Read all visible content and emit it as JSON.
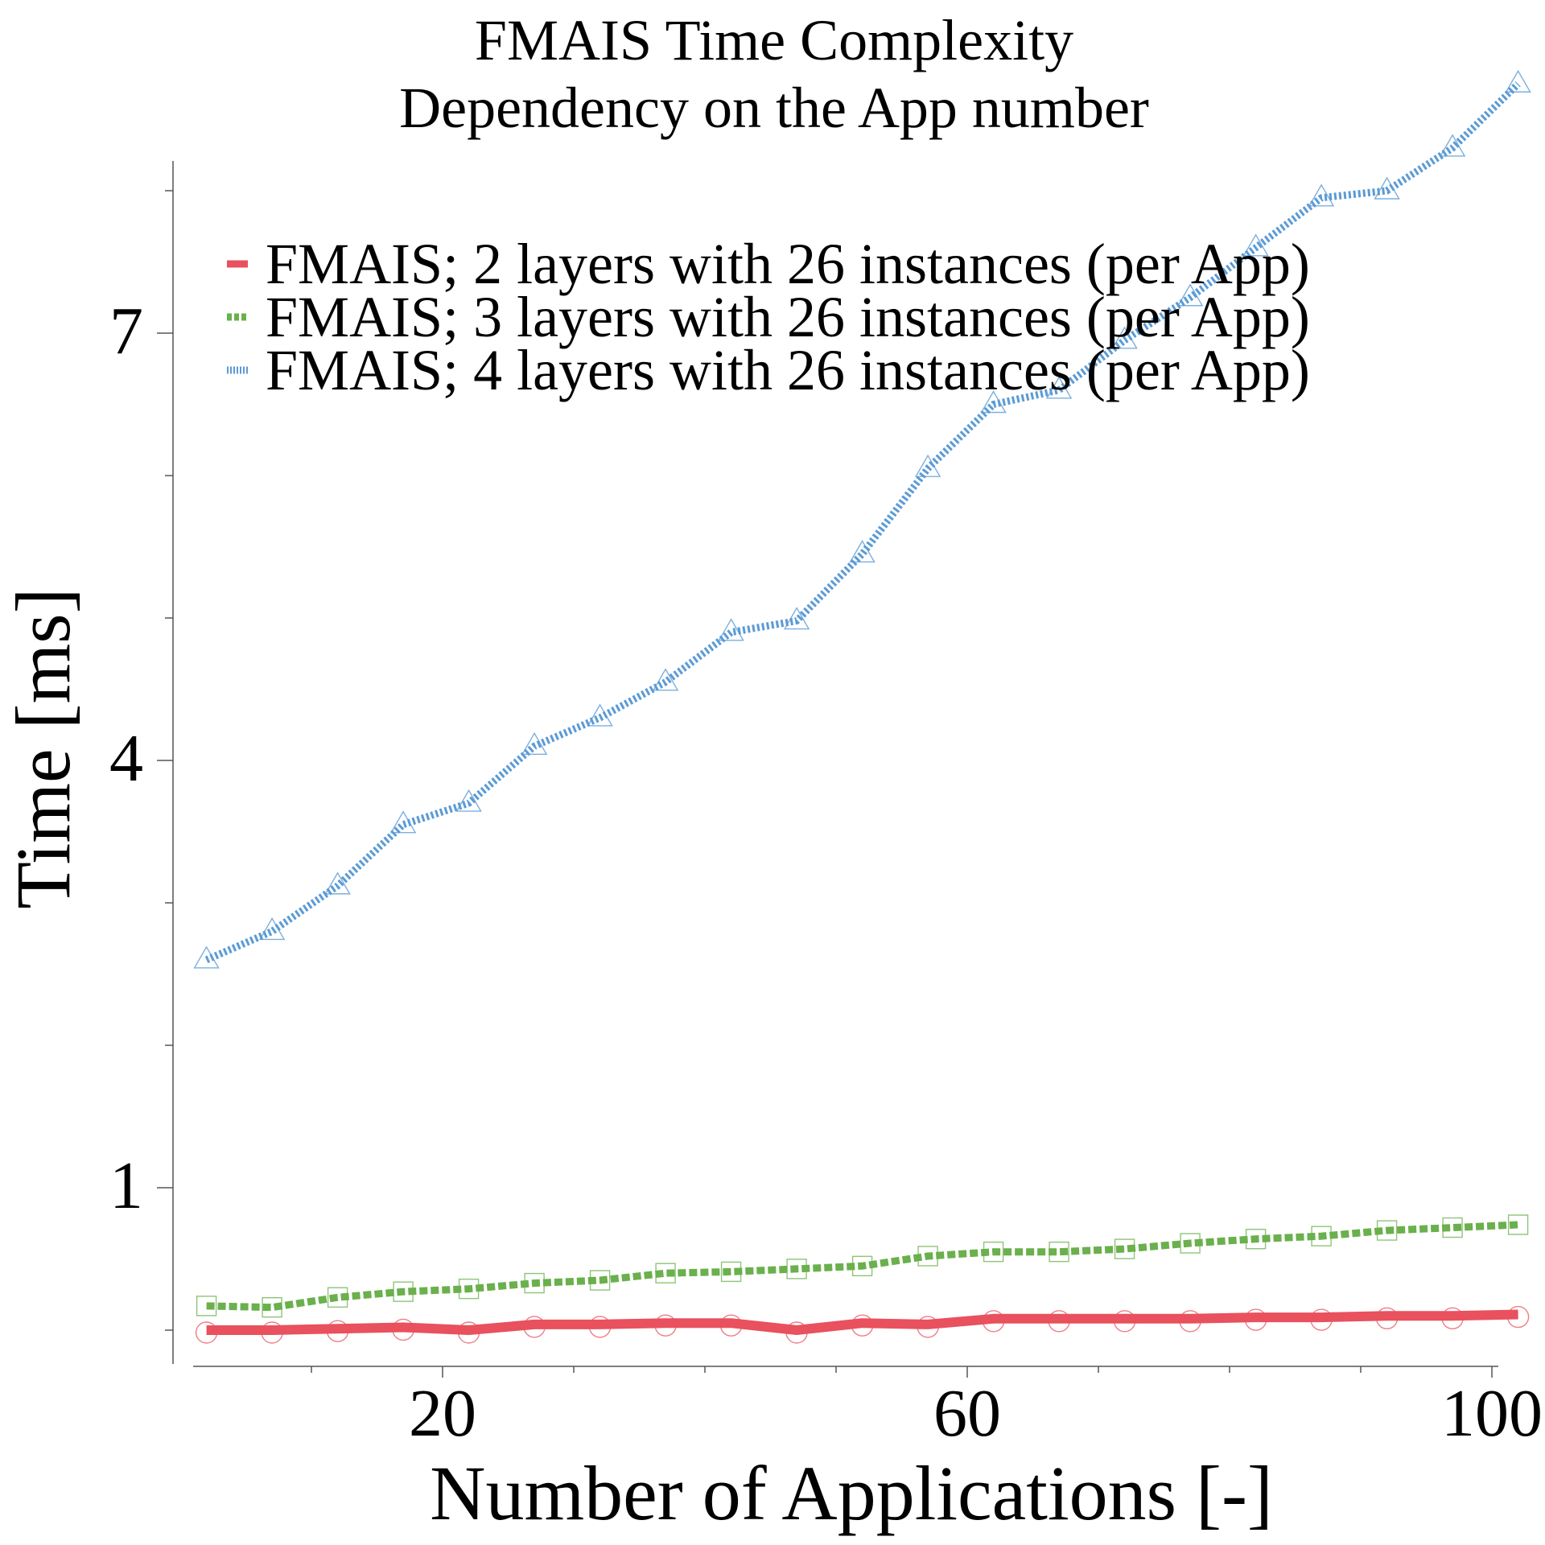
{
  "chart_data": {
    "type": "line",
    "title": "FMAIS Time Complexity",
    "subtitle": "Dependency on the App number",
    "xlabel": "Number of Applications [-]",
    "ylabel": "Time [ms]",
    "xlim": [
      2,
      102
    ],
    "ylim": [
      0,
      8.5
    ],
    "x_ticks": [
      20,
      60,
      100
    ],
    "y_ticks": [
      1,
      4,
      7
    ],
    "grid": false,
    "legend_position": "top-left",
    "x": [
      2,
      7,
      12,
      17,
      22,
      27,
      32,
      37,
      42,
      47,
      52,
      57,
      62,
      67,
      72,
      77,
      82,
      87,
      92,
      97,
      102
    ],
    "series": [
      {
        "name": "FMAIS; 2 layers with 26 instances (per App)",
        "color": "#e8515d",
        "marker": "circle",
        "line_style": "solid",
        "values": [
          0.0,
          0.0,
          0.01,
          0.02,
          0.0,
          0.04,
          0.04,
          0.05,
          0.05,
          0.0,
          0.05,
          0.04,
          0.08,
          0.08,
          0.08,
          0.08,
          0.09,
          0.09,
          0.1,
          0.1,
          0.11
        ]
      },
      {
        "name": "FMAIS; 3 layers with 26 instances (per App)",
        "color": "#6ab04c",
        "marker": "square",
        "line_style": "dashed",
        "values": [
          0.17,
          0.16,
          0.23,
          0.27,
          0.29,
          0.33,
          0.35,
          0.4,
          0.41,
          0.43,
          0.45,
          0.52,
          0.55,
          0.55,
          0.57,
          0.61,
          0.64,
          0.66,
          0.7,
          0.72,
          0.74
        ]
      },
      {
        "name": "FMAIS; 4 layers with 26 instances (per App)",
        "color": "#5b9bd5",
        "marker": "triangle",
        "line_style": "dotted",
        "values": [
          2.6,
          2.8,
          3.12,
          3.55,
          3.7,
          4.1,
          4.3,
          4.55,
          4.9,
          4.98,
          5.45,
          6.05,
          6.5,
          6.6,
          6.95,
          7.25,
          7.6,
          7.95,
          8.0,
          8.3,
          8.75
        ]
      }
    ]
  }
}
